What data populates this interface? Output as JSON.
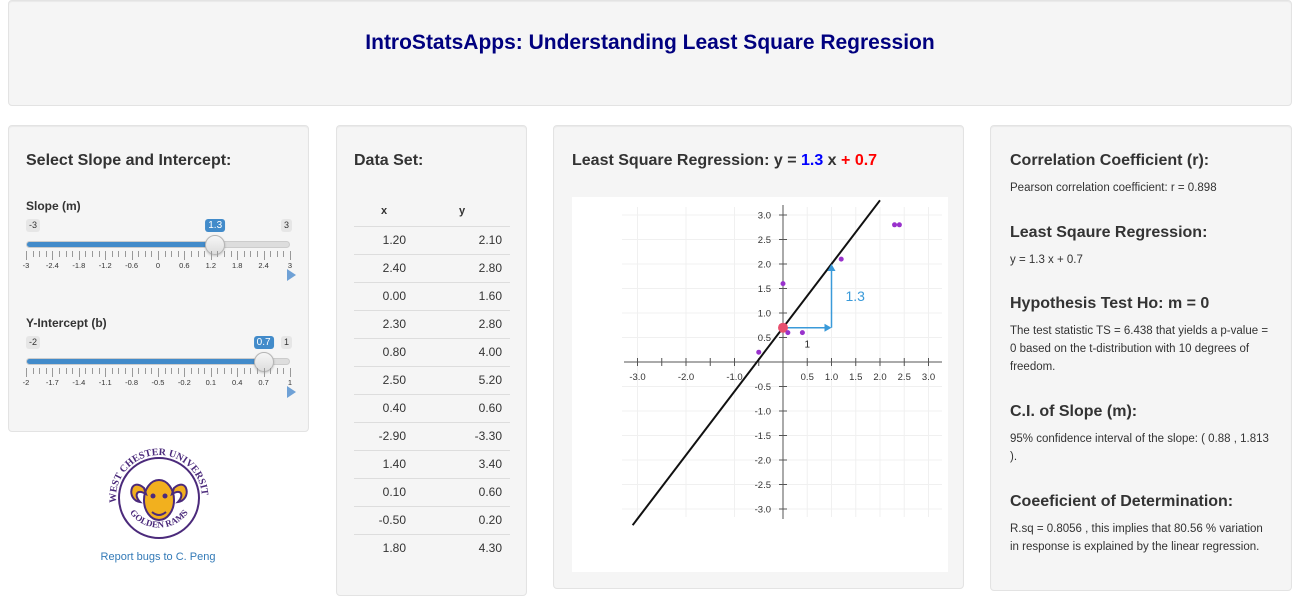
{
  "header": {
    "title": "IntroStatsApps: Understanding Least Square Regression"
  },
  "controls": {
    "heading": "Select Slope and Intercept:",
    "slope": {
      "label": "Slope (m)",
      "min": "-3",
      "max": "3",
      "value": "1.3",
      "fraction": 0.7167,
      "ticks": [
        "-3",
        "-2.4",
        "-1.8",
        "-1.2",
        "-0.6",
        "0",
        "0.6",
        "1.2",
        "1.8",
        "2.4",
        "3"
      ]
    },
    "intercept": {
      "label": "Y-Intercept (b)",
      "min": "-2",
      "max": "1",
      "value": "0.7",
      "fraction": 0.9,
      "ticks": [
        "-2",
        "-1.7",
        "-1.4",
        "-1.1",
        "-0.8",
        "-0.5",
        "-0.2",
        "0.1",
        "0.4",
        "0.7",
        "1"
      ]
    },
    "bug_link": "Report bugs to C. Peng"
  },
  "logo": {
    "top_text": "WEST CHESTER UNIVERSITY",
    "bottom_text": "GOLDEN RAMS"
  },
  "dataset": {
    "heading": "Data Set:",
    "columns": [
      "x",
      "y"
    ],
    "rows": [
      [
        "1.20",
        "2.10"
      ],
      [
        "2.40",
        "2.80"
      ],
      [
        "0.00",
        "1.60"
      ],
      [
        "2.30",
        "2.80"
      ],
      [
        "0.80",
        "4.00"
      ],
      [
        "2.50",
        "5.20"
      ],
      [
        "0.40",
        "0.60"
      ],
      [
        "-2.90",
        "-3.30"
      ],
      [
        "1.40",
        "3.40"
      ],
      [
        "0.10",
        "0.60"
      ],
      [
        "-0.50",
        "0.20"
      ],
      [
        "1.80",
        "4.30"
      ]
    ]
  },
  "plot": {
    "heading_prefix": "Least Square Regression: y = ",
    "slope_text": "1.3",
    "x_text": " x ",
    "intercept_text": "+ 0.7",
    "slope_color": "#0000ff",
    "intercept_color": "#ff0000",
    "triangle_rise_label": "1.3",
    "triangle_run_label": "1"
  },
  "chart_data": {
    "type": "scatter",
    "xlim": [
      -3,
      3
    ],
    "ylim": [
      -3,
      3
    ],
    "x_ticks": [
      "-3.0",
      "-2.0",
      "-1.0",
      "0.5",
      "1.0",
      "1.5",
      "2.0",
      "2.5",
      "3.0"
    ],
    "y_ticks": [
      "3.0",
      "2.5",
      "2.0",
      "1.5",
      "1.0",
      "0.5",
      "-0.5",
      "-1.0",
      "-1.5",
      "-2.0",
      "-2.5",
      "-3.0"
    ],
    "points": [
      {
        "x": 0.0,
        "y": 1.6
      },
      {
        "x": 1.2,
        "y": 2.1
      },
      {
        "x": 0.4,
        "y": 0.6
      },
      {
        "x": 0.1,
        "y": 0.6
      },
      {
        "x": -0.5,
        "y": 0.2
      },
      {
        "x": 2.3,
        "y": 2.8
      },
      {
        "x": 2.4,
        "y": 2.8
      }
    ],
    "line": {
      "slope": 1.3,
      "intercept": 0.7
    },
    "point_color": "#9932cc",
    "line_color": "#111111",
    "triangle_color": "#3a9ad9",
    "intercept_marker_color": "#e8506e"
  },
  "stats": {
    "corr_heading": "Correlation Coefficient (r):",
    "corr_text": "Pearson correlation coefficient: r = 0.898",
    "lsr_heading": "Least Sqaure Regression:",
    "lsr_text": "y = 1.3 x + 0.7",
    "ht_heading": "Hypothesis Test Ho: m = 0",
    "ht_text": "The test statistic TS = 6.438 that yields a p-value = 0 based on the t-distribution with 10 degrees of freedom.",
    "ci_heading": "C.I. of Slope (m):",
    "ci_text": "95% confidence interval of the slope: ( 0.88 , 1.813 ).",
    "cod_heading": "Coeeficient of Determination:",
    "cod_text": "R.sq = 0.8056 , this implies that 80.56 % variation in response is explained by the linear regression."
  }
}
